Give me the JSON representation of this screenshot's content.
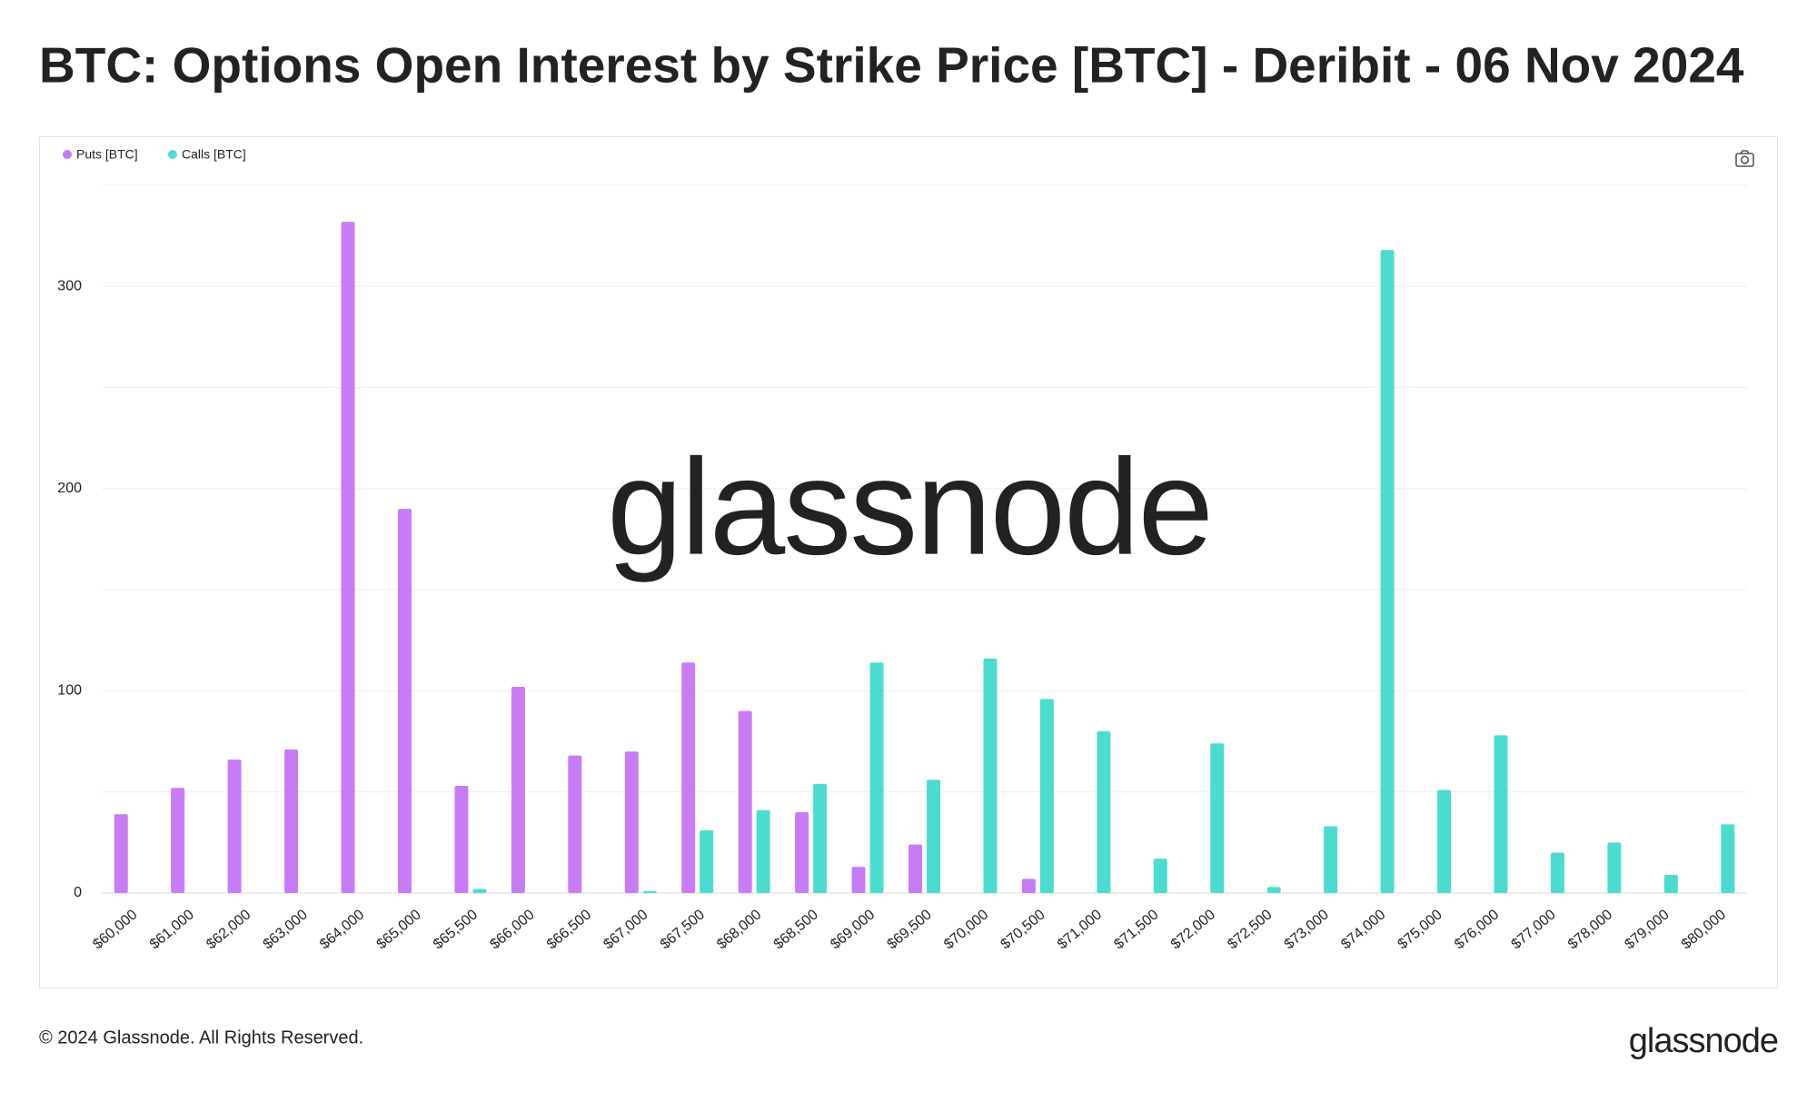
{
  "chart_data": {
    "type": "bar",
    "title": "BTC: Options Open Interest by Strike Price [BTC] - Deribit - 06 Nov 2024",
    "categories": [
      "$60,000",
      "$61,000",
      "$62,000",
      "$63,000",
      "$64,000",
      "$65,000",
      "$65,500",
      "$66,000",
      "$66,500",
      "$67,000",
      "$67,500",
      "$68,000",
      "$68,500",
      "$69,000",
      "$69,500",
      "$70,000",
      "$70,500",
      "$71,000",
      "$71,500",
      "$72,000",
      "$72,500",
      "$73,000",
      "$74,000",
      "$75,000",
      "$76,000",
      "$77,000",
      "$78,000",
      "$79,000",
      "$80,000"
    ],
    "series": [
      {
        "name": "Puts [BTC]",
        "color": "#c77cf5",
        "values": [
          39,
          52,
          66,
          71,
          332,
          190,
          53,
          102,
          68,
          70,
          114,
          90,
          40,
          13,
          24,
          0,
          7,
          0,
          0,
          0,
          0,
          0,
          0,
          0,
          0,
          0,
          0,
          0,
          0
        ]
      },
      {
        "name": "Calls [BTC]",
        "color": "#4cdccf",
        "values": [
          0,
          0,
          0,
          0,
          0,
          0,
          2,
          0,
          0,
          1,
          31,
          41,
          54,
          114,
          56,
          116,
          96,
          80,
          17,
          74,
          3,
          33,
          318,
          51,
          78,
          20,
          25,
          9,
          34
        ]
      }
    ],
    "ylim": [
      0,
      350
    ],
    "yticks": [
      0,
      100,
      200,
      300
    ],
    "y_minor_gridlines": [
      50,
      150,
      250,
      350
    ],
    "grid": true,
    "watermark": "glassnode",
    "footer": "© 2024 Glassnode. All Rights Reserved.",
    "logo": "glassnode"
  }
}
